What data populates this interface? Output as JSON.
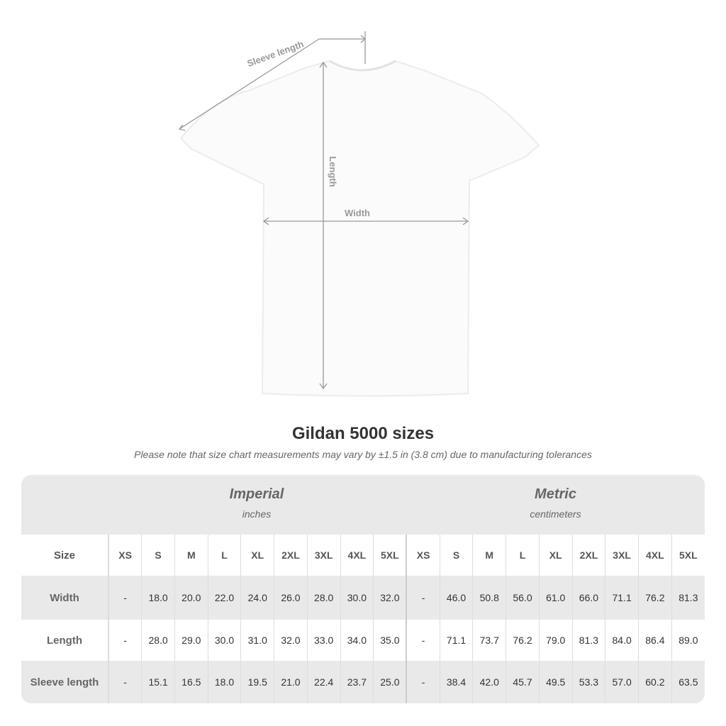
{
  "diagram": {
    "sleeve_label": "Sleeve length",
    "length_label": "Length",
    "width_label": "Width"
  },
  "title": "Gildan 5000 sizes",
  "note": "Please note that size chart measurements may vary by ±1.5 in (3.8 cm) due to manufacturing tolerances",
  "imperial": {
    "title": "Imperial",
    "unit": "inches"
  },
  "metric": {
    "title": "Metric",
    "unit": "centimeters"
  },
  "size_label": "Size",
  "sizes": [
    "XS",
    "S",
    "M",
    "L",
    "XL",
    "2XL",
    "3XL",
    "4XL",
    "5XL"
  ],
  "rows": [
    {
      "label": "Width",
      "imperial": [
        "-",
        "18.0",
        "20.0",
        "22.0",
        "24.0",
        "26.0",
        "28.0",
        "30.0",
        "32.0"
      ],
      "metric": [
        "-",
        "46.0",
        "50.8",
        "56.0",
        "61.0",
        "66.0",
        "71.1",
        "76.2",
        "81.3"
      ]
    },
    {
      "label": "Length",
      "imperial": [
        "-",
        "28.0",
        "29.0",
        "30.0",
        "31.0",
        "32.0",
        "33.0",
        "34.0",
        "35.0"
      ],
      "metric": [
        "-",
        "71.1",
        "73.7",
        "76.2",
        "79.0",
        "81.3",
        "84.0",
        "86.4",
        "89.0"
      ]
    },
    {
      "label": "Sleeve length",
      "imperial": [
        "-",
        "15.1",
        "16.5",
        "18.0",
        "19.5",
        "21.0",
        "22.4",
        "23.7",
        "25.0"
      ],
      "metric": [
        "-",
        "38.4",
        "42.0",
        "45.7",
        "49.5",
        "53.3",
        "57.0",
        "60.2",
        "63.5"
      ]
    }
  ],
  "colors": {
    "line": "#999999",
    "band": "#e9e9e9"
  }
}
